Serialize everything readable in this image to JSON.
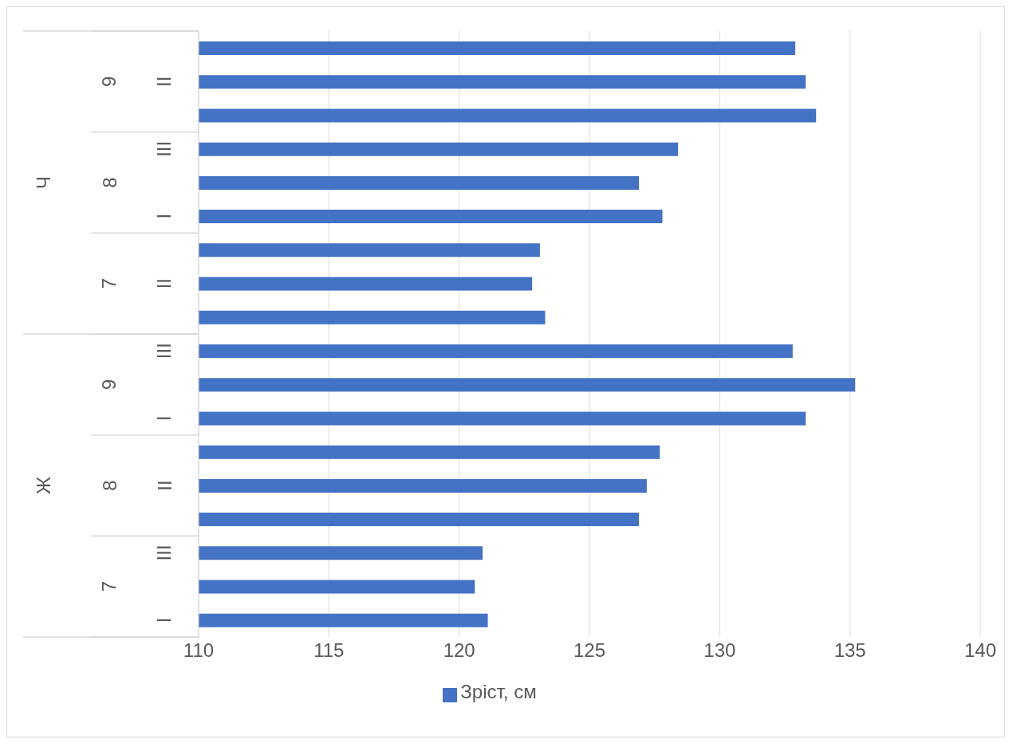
{
  "chart_data": {
    "type": "bar",
    "orientation": "horizontal",
    "categories": [
      null,
      "II",
      null,
      "III",
      null,
      "I",
      null,
      "II",
      null,
      "III",
      null,
      "I",
      null,
      "II",
      null,
      "III",
      null,
      "I"
    ],
    "series": [
      {
        "name": "Зріст, см",
        "color": "#4472c4",
        "values": [
          132.9,
          133.3,
          133.7,
          128.4,
          126.9,
          127.8,
          123.1,
          122.8,
          123.3,
          132.8,
          135.2,
          133.3,
          127.7,
          127.2,
          126.9,
          120.9,
          120.6,
          121.1
        ]
      }
    ],
    "annotations": [
      "Ч",
      "Ж",
      "9",
      "8",
      "7",
      "9",
      "8",
      "7"
    ],
    "xlim": [
      110,
      140
    ],
    "xticks": [
      110,
      115,
      120,
      125,
      130,
      135,
      140
    ],
    "grid": "x",
    "legend": "bottom"
  }
}
